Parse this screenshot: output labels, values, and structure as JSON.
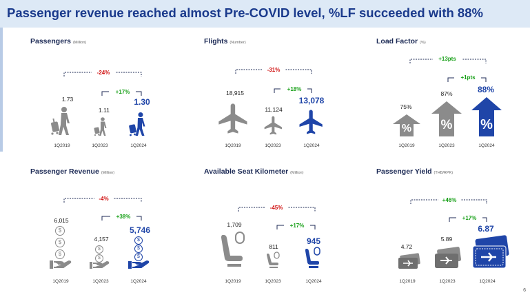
{
  "header": {
    "title": "Passenger revenue reached almost Pre-COVID level, %LF succeeded with 88%"
  },
  "colors": {
    "gray": "#8b8b8b",
    "blue": "#1f45a8",
    "red": "#d01010",
    "green": "#18a018"
  },
  "panels": {
    "passengers": {
      "title": "Passengers",
      "unit": "(Million)",
      "change_long": "-24%",
      "change_short": "+17%",
      "values": [
        "1.73",
        "1.11",
        "1.30"
      ],
      "quarters": [
        "1Q2019",
        "1Q2023",
        "1Q2024"
      ],
      "icon": "walking-traveler-icon"
    },
    "flights": {
      "title": "Flights",
      "unit": "(Number)",
      "change_long": "-31%",
      "change_short": "+18%",
      "values": [
        "18,915",
        "11,124",
        "13,078"
      ],
      "quarters": [
        "1Q2019",
        "1Q2023",
        "1Q2024"
      ],
      "icon": "airplane-icon"
    },
    "load_factor": {
      "title": "Load Factor",
      "unit": "(%)",
      "change_long": "+13pts",
      "change_short": "+1pts",
      "values": [
        "75%",
        "87%",
        "88%"
      ],
      "quarters": [
        "1Q2019",
        "1Q2023",
        "1Q2024"
      ],
      "icon_text": "%",
      "icon": "percent-arrow-icon"
    },
    "revenue": {
      "title": "Passenger Revenue",
      "unit": "(Million)",
      "change_long": "-4%",
      "change_short": "+38%",
      "values": [
        "6,015",
        "4,157",
        "5,746"
      ],
      "quarters": [
        "1Q2019",
        "1Q2023",
        "1Q2024"
      ],
      "coin_symbol": "$",
      "icon": "coins-hand-icon"
    },
    "ask": {
      "title": "Available Seat Kilometer",
      "unit": "(Million)",
      "change_long": "-45%",
      "change_short": "+17%",
      "values": [
        "1,709",
        "811",
        "945"
      ],
      "quarters": [
        "1Q2019",
        "1Q2023",
        "1Q2024"
      ],
      "icon": "airplane-seat-icon"
    },
    "yield": {
      "title": "Passenger Yield",
      "unit": "(THB/RPK)",
      "change_long": "+46%",
      "change_short": "+17%",
      "values": [
        "4.72",
        "5.89",
        "6.87"
      ],
      "quarters": [
        "1Q2019",
        "1Q2023",
        "1Q2024"
      ],
      "icon": "flight-ticket-icon"
    }
  },
  "page_number": "6"
}
